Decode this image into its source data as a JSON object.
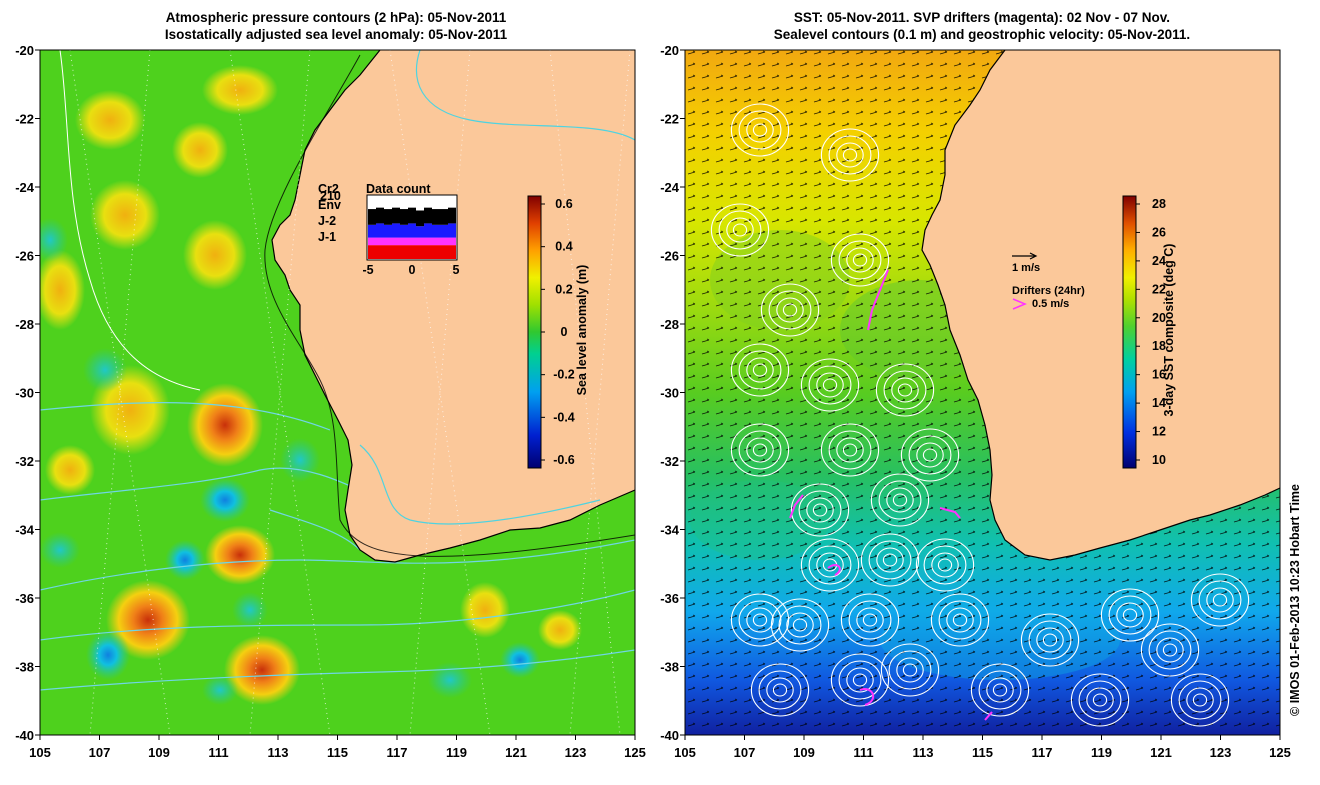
{
  "left": {
    "title_line1": "Atmospheric pressure contours (2 hPa): 05-Nov-2011",
    "title_line2": "Isostatically adjusted sea level anomaly: 05-Nov-2011",
    "colorbar": {
      "label": "Sea level anomaly (m)",
      "ticks": [
        "0.6",
        "0.4",
        "0.2",
        "0",
        "-0.2",
        "-0.4",
        "-0.6"
      ]
    },
    "data_count": {
      "title": "Data count",
      "missions": [
        "Cr2",
        "Env",
        "J-2",
        "J-1"
      ],
      "mission_extra": "210",
      "mission_colors": [
        "#000000",
        "#1a1aff",
        "#ff33ff",
        "#ee0000"
      ],
      "axis_ticks": [
        "-5",
        "0",
        "5"
      ],
      "bars": [
        {
          "k": 0,
          "j": 0.4,
          "b": 0.45
        },
        {
          "k": 0,
          "j": 0.4,
          "b": 0.5
        },
        {
          "k": 0,
          "j": 0.45,
          "b": 0.45
        },
        {
          "k": 0,
          "j": 0.35,
          "b": 0.5
        },
        {
          "k": 0,
          "j": 0.45,
          "b": 0.45
        },
        {
          "k": 0,
          "j": 0.4,
          "b": 0.5
        },
        {
          "k": 0,
          "j": 0.45,
          "b": 0.4
        },
        {
          "k": 0,
          "j": 0.4,
          "b": 0.5
        },
        {
          "k": 0,
          "j": 0.4,
          "b": 0.45
        },
        {
          "k": 0,
          "j": 0.45,
          "b": 0.45
        },
        {
          "k": 0,
          "j": 0.4,
          "b": 0.5
        }
      ]
    }
  },
  "right": {
    "title_line1": "SST: 05-Nov-2011. SVP drifters (magenta): 02 Nov - 07 Nov.",
    "title_line2": "Sealevel contours (0.1 m) and geostrophic velocity: 05-Nov-2011.",
    "colorbar": {
      "label": "3-day SST composite (deg C)",
      "ticks": [
        "28",
        "26",
        "24",
        "22",
        "20",
        "18",
        "16",
        "14",
        "12",
        "10"
      ]
    },
    "velocity_scale": "1 m/s",
    "drifters_label": "Drifters (24hr)",
    "drifter_speed": "0.5 m/s"
  },
  "axes": {
    "lat_ticks": [
      "-20",
      "-22",
      "-24",
      "-26",
      "-28",
      "-30",
      "-32",
      "-34",
      "-36",
      "-38",
      "-40"
    ],
    "lon_ticks": [
      "105",
      "107",
      "109",
      "111",
      "113",
      "115",
      "117",
      "119",
      "121",
      "123",
      "125"
    ]
  },
  "credit": "© IMOS 01-Feb-2013 10:23 Hobart Time",
  "colors": {
    "land": "#fbc89a",
    "sla_background": "#4ed11d",
    "coast": "#000000",
    "pressure_contour": "#6fd6e4",
    "drifter": "#ff33ff"
  }
}
